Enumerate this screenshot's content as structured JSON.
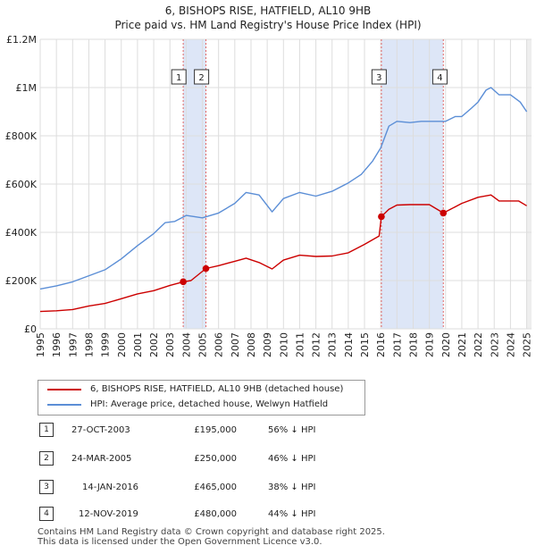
{
  "header": {
    "line1": "6, BISHOPS RISE, HATFIELD, AL10 9HB",
    "line2": "Price paid vs. HM Land Registry's House Price Index (HPI)"
  },
  "chart_data": {
    "type": "line",
    "title": "6, BISHOPS RISE, HATFIELD, AL10 9HB",
    "subtitle": "Price paid vs. HM Land Registry's House Price Index (HPI)",
    "xlabel": "",
    "ylabel": "",
    "xlim": [
      1995,
      2025.3
    ],
    "ylim": [
      0,
      1200000
    ],
    "yticks": [
      {
        "value": 0,
        "label": "£0"
      },
      {
        "value": 200000,
        "label": "£200K"
      },
      {
        "value": 400000,
        "label": "£400K"
      },
      {
        "value": 600000,
        "label": "£600K"
      },
      {
        "value": 800000,
        "label": "£800K"
      },
      {
        "value": 1000000,
        "label": "£1M"
      },
      {
        "value": 1200000,
        "label": "£1.2M"
      }
    ],
    "xticks": [
      "1995",
      "1996",
      "1997",
      "1998",
      "1999",
      "2000",
      "2001",
      "2002",
      "2003",
      "2004",
      "2005",
      "2006",
      "2007",
      "2008",
      "2009",
      "2010",
      "2011",
      "2012",
      "2013",
      "2014",
      "2015",
      "2016",
      "2017",
      "2018",
      "2019",
      "2020",
      "2021",
      "2022",
      "2023",
      "2024",
      "2025"
    ],
    "grid": true,
    "colors": {
      "property": "#cc0000",
      "hpi": "#5b8ed6",
      "shade": "#dde6f7",
      "marker_line": "#e06666"
    },
    "series": [
      {
        "name": "6, BISHOPS RISE, HATFIELD, AL10 9HB (detached house)",
        "x": [
          1995,
          1996,
          1997,
          1998,
          1999,
          2000,
          2001,
          2002,
          2003,
          2003.82,
          2004.3,
          2005.22,
          2006,
          2007,
          2007.7,
          2008.5,
          2009.3,
          2010,
          2011,
          2012,
          2013,
          2014,
          2015,
          2015.9,
          2016.04,
          2016.5,
          2017,
          2017.8,
          2018.5,
          2019,
          2019.86,
          2020.3,
          2021,
          2022,
          2022.8,
          2023.3,
          2024,
          2024.5,
          2025
        ],
        "values": [
          72000,
          75000,
          80000,
          95000,
          105000,
          125000,
          145000,
          158000,
          180000,
          195000,
          200000,
          250000,
          262000,
          280000,
          293000,
          275000,
          248000,
          285000,
          305000,
          300000,
          302000,
          315000,
          350000,
          385000,
          465000,
          495000,
          513000,
          515000,
          515000,
          515000,
          480000,
          495000,
          520000,
          545000,
          555000,
          530000,
          530000,
          530000,
          510000
        ]
      },
      {
        "name": "HPI: Average price, detached house, Welwyn Hatfield",
        "x": [
          1995,
          1996,
          1997,
          1998,
          1999,
          2000,
          2001,
          2002,
          2002.7,
          2003.3,
          2004,
          2005,
          2006,
          2007,
          2007.7,
          2008.5,
          2009.3,
          2010,
          2011,
          2012,
          2013,
          2014,
          2014.8,
          2015.5,
          2016,
          2016.5,
          2017,
          2017.8,
          2018.5,
          2019,
          2020,
          2020.6,
          2021,
          2021.6,
          2022,
          2022.5,
          2022.8,
          2023.3,
          2024,
          2024.6,
          2025
        ],
        "values": [
          165000,
          178000,
          195000,
          220000,
          245000,
          290000,
          345000,
          395000,
          440000,
          445000,
          470000,
          460000,
          480000,
          520000,
          565000,
          555000,
          485000,
          540000,
          565000,
          550000,
          570000,
          605000,
          640000,
          695000,
          750000,
          840000,
          860000,
          855000,
          860000,
          860000,
          860000,
          880000,
          880000,
          915000,
          940000,
          990000,
          1000000,
          970000,
          970000,
          940000,
          900000
        ]
      }
    ],
    "sales": [
      {
        "id": "1",
        "x": 2003.82,
        "price": 195000,
        "date": "27-OCT-2003",
        "price_label": "£195,000",
        "hpi": "56% ↓ HPI"
      },
      {
        "id": "2",
        "x": 2005.22,
        "price": 250000,
        "date": "24-MAR-2005",
        "price_label": "£250,000",
        "hpi": "46% ↓ HPI"
      },
      {
        "id": "3",
        "x": 2016.04,
        "price": 465000,
        "date": "14-JAN-2016",
        "price_label": "£465,000",
        "hpi": "38% ↓ HPI"
      },
      {
        "id": "4",
        "x": 2019.86,
        "price": 480000,
        "date": "12-NOV-2019",
        "price_label": "£480,000",
        "hpi": "44% ↓ HPI"
      }
    ],
    "shaded_ranges": [
      [
        2003.82,
        2005.22
      ],
      [
        2016.04,
        2019.86
      ]
    ],
    "legend": [
      {
        "label": "6, BISHOPS RISE, HATFIELD, AL10 9HB (detached house)",
        "color": "#cc0000"
      },
      {
        "label": "HPI: Average price, detached house, Welwyn Hatfield",
        "color": "#5b8ed6"
      }
    ]
  },
  "footer": {
    "line1": "Contains HM Land Registry data © Crown copyright and database right 2025.",
    "line2": "This data is licensed under the Open Government Licence v3.0."
  }
}
